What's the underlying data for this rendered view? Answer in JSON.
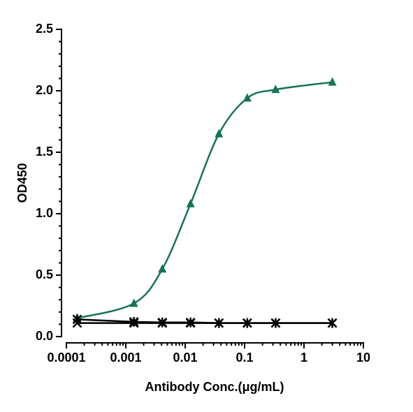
{
  "chart_data": {
    "type": "line",
    "xlabel": "Antibody Conc.(μg/mL)",
    "ylabel": "OD450",
    "xscale": "log",
    "xlim": [
      0.0001,
      10
    ],
    "xticks": [
      0.0001,
      0.001,
      0.01,
      0.1,
      1,
      10
    ],
    "ylim": [
      0,
      2.5
    ],
    "yticks": [
      {
        "value": 0,
        "label": "0.0"
      },
      0.5,
      {
        "value": 1,
        "label": "1.0"
      },
      1.5,
      {
        "value": 2,
        "label": "2.0"
      },
      2.5
    ],
    "minor_ticks": true,
    "x": [
      0.000152,
      0.00137,
      0.00412,
      0.0123,
      0.037,
      0.111,
      0.333,
      3
    ],
    "series": [
      {
        "color": "#167356",
        "marker": "triangle",
        "smooth": true,
        "values": [
          0.15,
          0.27,
          0.55,
          1.08,
          1.65,
          1.94,
          2.01,
          2.07
        ]
      },
      {
        "color": "#000000",
        "marker": "asterisk",
        "smooth": false,
        "values": [
          0.14,
          0.12,
          0.115,
          0.115,
          0.11,
          0.11,
          0.11,
          0.11
        ]
      },
      {
        "color": "#000000",
        "marker": "cross",
        "smooth": false,
        "values": [
          0.11,
          0.11,
          0.11,
          0.11,
          0.11,
          0.11,
          0.11,
          0.11
        ]
      }
    ]
  }
}
